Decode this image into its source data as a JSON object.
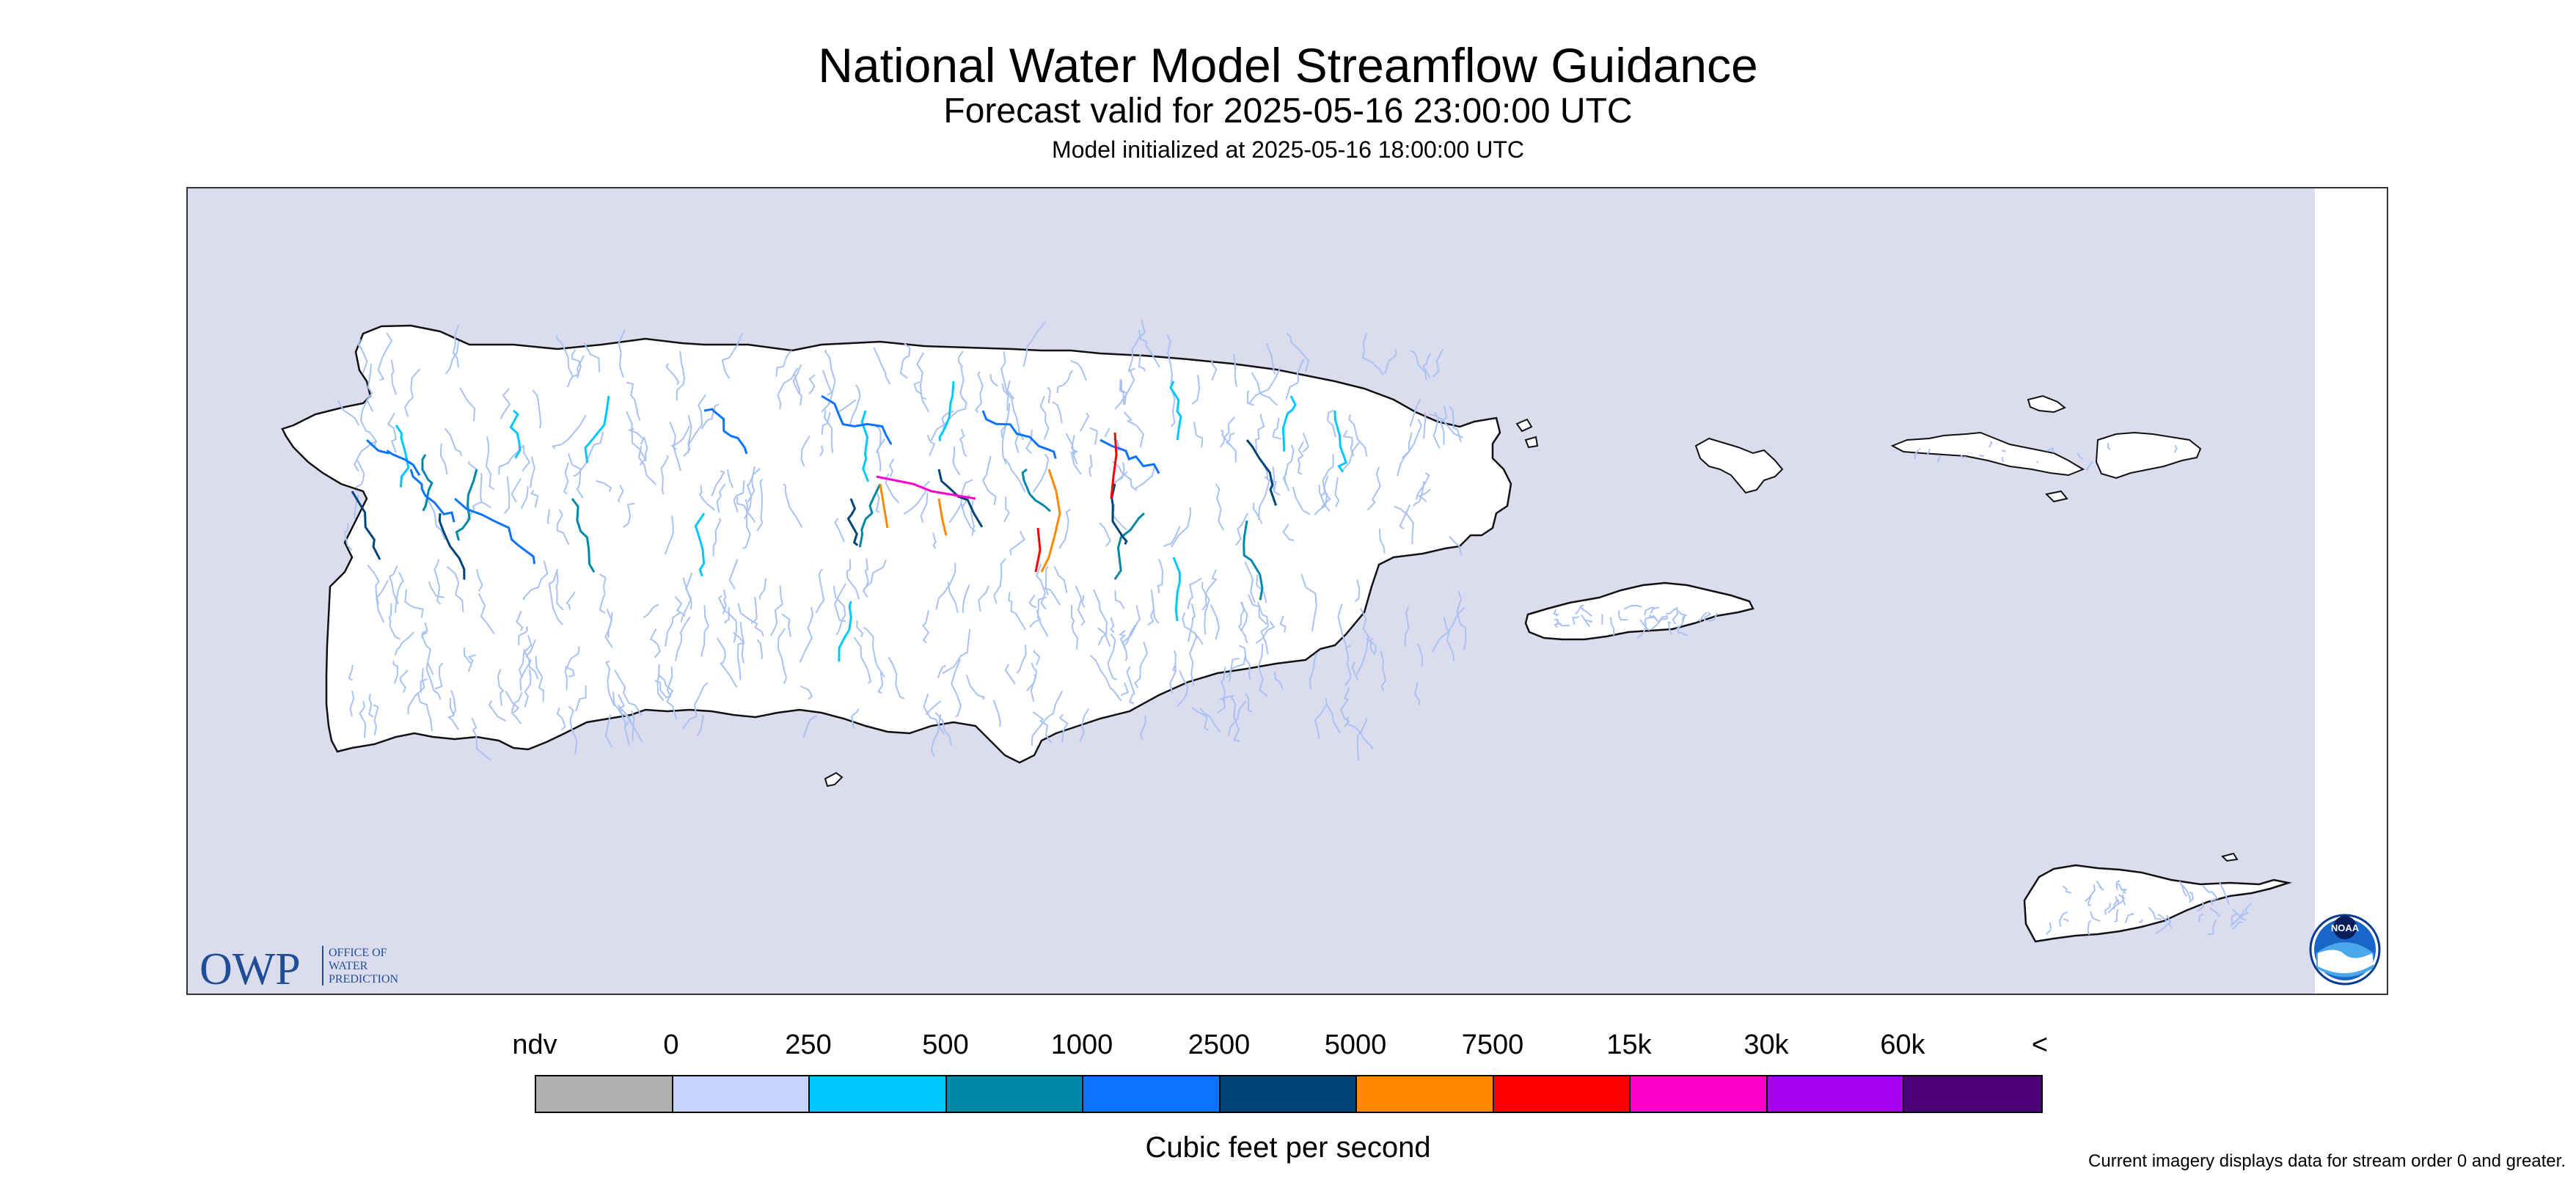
{
  "title": "National Water Model Streamflow Guidance",
  "subtitle": "Forecast valid for 2025-05-16 23:00:00 UTC",
  "init_line": "Model initialized at 2025-05-16 18:00:00 UTC",
  "map": {
    "background_color": "#dcdcef",
    "land_color": "#ffffff",
    "coastline_color": "#000000",
    "stream_base_color": "#a9c2f2",
    "owp_logo": {
      "mark": "OWP",
      "line1": "OFFICE OF",
      "line2": "WATER",
      "line3": "PREDICTION",
      "color": "#1f4e96"
    },
    "noaa_logo": {
      "text": "NOAA"
    }
  },
  "legend": {
    "labels": [
      "ndv",
      "0",
      "250",
      "500",
      "1000",
      "2500",
      "5000",
      "7500",
      "15k",
      "30k",
      "60k",
      "<"
    ],
    "colors": [
      "#b0b0b0",
      "#c4d4ff",
      "#00c8ff",
      "#0088a8",
      "#0a74ff",
      "#00457a",
      "#ff8800",
      "#ff0000",
      "#ff00cc",
      "#a800f0",
      "#4b0076"
    ],
    "units": "Cubic feet per second"
  },
  "footnote": "Current imagery displays data for stream order 0 and greater."
}
